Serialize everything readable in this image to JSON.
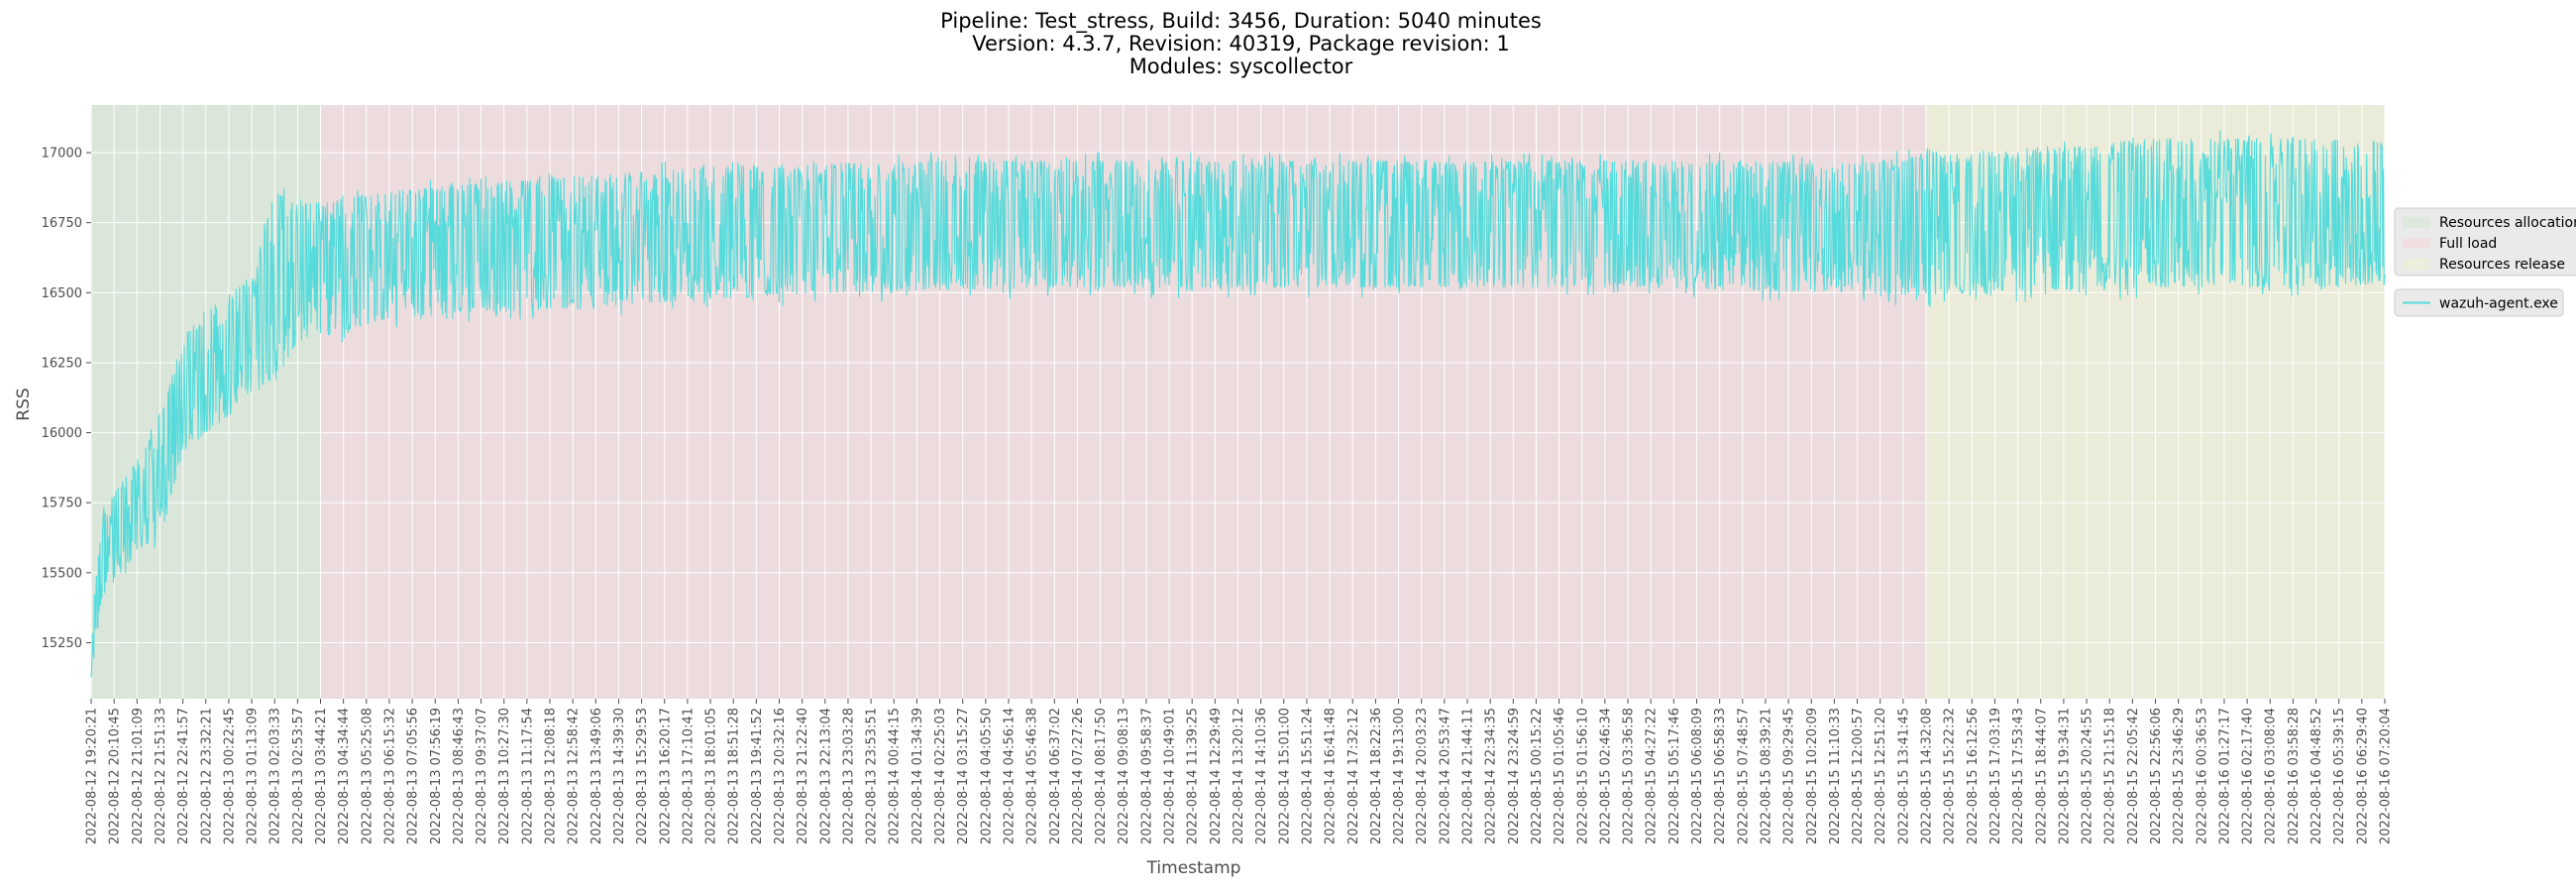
{
  "chart_data": {
    "type": "line",
    "title": [
      "Pipeline: Test_stress, Build: 3456, Duration: 5040 minutes",
      "Version: 4.3.7, Revision: 40319, Package revision: 1",
      "Modules: syscollector"
    ],
    "xlabel": "Timestamp",
    "ylabel": "RSS",
    "ylim": [
      15050,
      17170
    ],
    "yticks": [
      15250,
      15500,
      15750,
      16000,
      16250,
      16500,
      16750,
      17000
    ],
    "grid": true,
    "x_start": "2022-08-12 19:20:21",
    "x_end": "2022-08-16 07:20:04",
    "xtick_labels": [
      "2022-08-12 19:20:21",
      "2022-08-12 20:10:45",
      "2022-08-12 21:01:09",
      "2022-08-12 21:51:33",
      "2022-08-12 22:41:57",
      "2022-08-12 23:32:21",
      "2022-08-13 00:22:45",
      "2022-08-13 01:13:09",
      "2022-08-13 02:03:33",
      "2022-08-13 02:53:57",
      "2022-08-13 03:44:21",
      "2022-08-13 04:34:44",
      "2022-08-13 05:25:08",
      "2022-08-13 06:15:32",
      "2022-08-13 07:05:56",
      "2022-08-13 07:56:19",
      "2022-08-13 08:46:43",
      "2022-08-13 09:37:07",
      "2022-08-13 10:27:30",
      "2022-08-13 11:17:54",
      "2022-08-13 12:08:18",
      "2022-08-13 12:58:42",
      "2022-08-13 13:49:06",
      "2022-08-13 14:39:30",
      "2022-08-13 15:29:53",
      "2022-08-13 16:20:17",
      "2022-08-13 17:10:41",
      "2022-08-13 18:01:05",
      "2022-08-13 18:51:28",
      "2022-08-13 19:41:52",
      "2022-08-13 20:32:16",
      "2022-08-13 21:22:40",
      "2022-08-13 22:13:04",
      "2022-08-13 23:03:28",
      "2022-08-13 23:53:51",
      "2022-08-14 00:44:15",
      "2022-08-14 01:34:39",
      "2022-08-14 02:25:03",
      "2022-08-14 03:15:27",
      "2022-08-14 04:05:50",
      "2022-08-14 04:56:14",
      "2022-08-14 05:46:38",
      "2022-08-14 06:37:02",
      "2022-08-14 07:27:26",
      "2022-08-14 08:17:50",
      "2022-08-14 09:08:13",
      "2022-08-14 09:58:37",
      "2022-08-14 10:49:01",
      "2022-08-14 11:39:25",
      "2022-08-14 12:29:49",
      "2022-08-14 13:20:12",
      "2022-08-14 14:10:36",
      "2022-08-14 15:01:00",
      "2022-08-14 15:51:24",
      "2022-08-14 16:41:48",
      "2022-08-14 17:32:12",
      "2022-08-14 18:22:36",
      "2022-08-14 19:13:00",
      "2022-08-14 20:03:23",
      "2022-08-14 20:53:47",
      "2022-08-14 21:44:11",
      "2022-08-14 22:34:35",
      "2022-08-14 23:24:59",
      "2022-08-15 00:15:22",
      "2022-08-15 01:05:46",
      "2022-08-15 01:56:10",
      "2022-08-15 02:46:34",
      "2022-08-15 03:36:58",
      "2022-08-15 04:27:22",
      "2022-08-15 05:17:46",
      "2022-08-15 06:08:09",
      "2022-08-15 06:58:33",
      "2022-08-15 07:48:57",
      "2022-08-15 08:39:21",
      "2022-08-15 09:29:45",
      "2022-08-15 10:20:09",
      "2022-08-15 11:10:33",
      "2022-08-15 12:00:57",
      "2022-08-15 12:51:20",
      "2022-08-15 13:41:45",
      "2022-08-15 14:32:08",
      "2022-08-15 15:22:32",
      "2022-08-15 16:12:56",
      "2022-08-15 17:03:19",
      "2022-08-15 17:53:43",
      "2022-08-15 18:44:07",
      "2022-08-15 19:34:31",
      "2022-08-15 20:24:55",
      "2022-08-15 21:15:18",
      "2022-08-15 22:05:42",
      "2022-08-15 22:56:06",
      "2022-08-15 23:46:29",
      "2022-08-16 00:36:53",
      "2022-08-16 01:27:17",
      "2022-08-16 02:17:40",
      "2022-08-16 03:08:04",
      "2022-08-16 03:58:28",
      "2022-08-16 04:48:52",
      "2022-08-16 05:39:15",
      "2022-08-16 06:29:40",
      "2022-08-16 07:20:04"
    ],
    "phases": [
      {
        "name": "Resources allocation",
        "start": "2022-08-12 19:20:21",
        "end": "2022-08-13 03:44:21",
        "color": "#c8e6c9"
      },
      {
        "name": "Full load",
        "start": "2022-08-13 03:44:21",
        "end": "2022-08-15 14:32:08",
        "color": "#f7cfd2"
      },
      {
        "name": "Resources release",
        "start": "2022-08-15 14:32:08",
        "end": "2022-08-16 07:20:04",
        "color": "#f0f2c8"
      }
    ],
    "series": [
      {
        "name": "wazuh-agent.exe",
        "color": "#55dbdb",
        "x": [
          "2022-08-12 19:20:21",
          "2022-08-12 19:45:00",
          "2022-08-12 21:01:09",
          "2022-08-12 21:51:33",
          "2022-08-12 22:41:57",
          "2022-08-12 23:32:21",
          "2022-08-13 00:22:45",
          "2022-08-13 01:13:09",
          "2022-08-13 02:03:33",
          "2022-08-13 02:53:57",
          "2022-08-13 03:44:21",
          "2022-08-13 06:15:32",
          "2022-08-13 09:37:07",
          "2022-08-13 13:49:06",
          "2022-08-13 18:01:05",
          "2022-08-13 22:13:04",
          "2022-08-14 02:25:03",
          "2022-08-14 06:37:02",
          "2022-08-14 10:49:01",
          "2022-08-14 15:01:00",
          "2022-08-14 19:13:00",
          "2022-08-14 23:24:59",
          "2022-08-15 03:36:58",
          "2022-08-15 07:48:57",
          "2022-08-15 12:00:57",
          "2022-08-15 14:32:08",
          "2022-08-15 18:44:07",
          "2022-08-15 22:56:06",
          "2022-08-16 03:08:04",
          "2022-08-16 07:20:04"
        ],
        "y_low": [
          15120,
          15420,
          15560,
          15640,
          15930,
          16000,
          16060,
          16150,
          16180,
          16330,
          16340,
          16410,
          16430,
          16450,
          16480,
          16500,
          16510,
          16520,
          16520,
          16520,
          16520,
          16520,
          16520,
          16510,
          16500,
          16490,
          16510,
          16520,
          16520,
          16530
        ],
        "y_high": [
          15300,
          15720,
          15900,
          16040,
          16340,
          16430,
          16500,
          16540,
          16860,
          16820,
          16820,
          16860,
          16890,
          16920,
          16950,
          16960,
          16970,
          16970,
          16970,
          16970,
          16970,
          16970,
          16970,
          16970,
          16960,
          16990,
          17010,
          17050,
          17050,
          17040
        ]
      }
    ],
    "legend": {
      "phase_placement": "right",
      "series_placement": "right"
    }
  }
}
